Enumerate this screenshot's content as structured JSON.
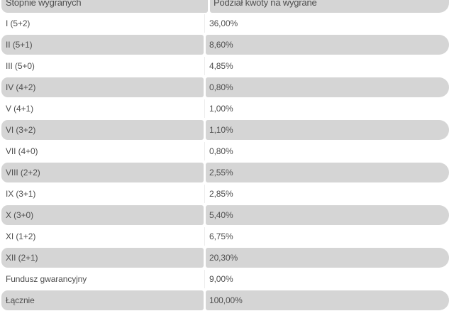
{
  "page": {
    "background": "#ffffff"
  },
  "table": {
    "columns": [
      {
        "id": "tier",
        "label": "Stopnie wygranych"
      },
      {
        "id": "share",
        "label": "Podział kwoty na wygrane"
      }
    ],
    "rows": [
      {
        "tier": "I (5+2)",
        "share": "36,00%",
        "shaded": false
      },
      {
        "tier": "II (5+1)",
        "share": "8,60%",
        "shaded": true
      },
      {
        "tier": "III (5+0)",
        "share": "4,85%",
        "shaded": false
      },
      {
        "tier": "IV (4+2)",
        "share": "0,80%",
        "shaded": true
      },
      {
        "tier": "V (4+1)",
        "share": "1,00%",
        "shaded": false
      },
      {
        "tier": "VI (3+2)",
        "share": "1,10%",
        "shaded": true
      },
      {
        "tier": "VII (4+0)",
        "share": "0,80%",
        "shaded": false
      },
      {
        "tier": "VIII (2+2)",
        "share": "2,55%",
        "shaded": true
      },
      {
        "tier": "IX (3+1)",
        "share": "2,85%",
        "shaded": false
      },
      {
        "tier": "X (3+0)",
        "share": "5,40%",
        "shaded": true
      },
      {
        "tier": "XI (1+2)",
        "share": "6,75%",
        "shaded": false
      },
      {
        "tier": "XII (2+1)",
        "share": "20,30%",
        "shaded": true
      },
      {
        "tier": "Fundusz gwarancyjny",
        "share": "9,00%",
        "shaded": false
      },
      {
        "tier": "Łącznie",
        "share": "100,00%",
        "shaded": true
      }
    ],
    "colors": {
      "header_bg": "#d5d5d5",
      "row_shaded_bg": "#d5d5d5",
      "row_plain_bg": "#ffffff",
      "text": "#4f4f4f",
      "divider": "#ececec"
    }
  }
}
